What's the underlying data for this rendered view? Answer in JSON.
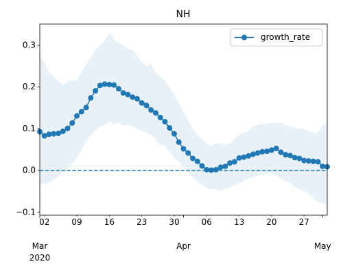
{
  "chart_data": {
    "type": "line",
    "title": "NH",
    "x": [
      "2020-03-01",
      "2020-03-02",
      "2020-03-03",
      "2020-03-04",
      "2020-03-05",
      "2020-03-06",
      "2020-03-07",
      "2020-03-08",
      "2020-03-09",
      "2020-03-10",
      "2020-03-11",
      "2020-03-12",
      "2020-03-13",
      "2020-03-14",
      "2020-03-15",
      "2020-03-16",
      "2020-03-17",
      "2020-03-18",
      "2020-03-19",
      "2020-03-20",
      "2020-03-21",
      "2020-03-22",
      "2020-03-23",
      "2020-03-24",
      "2020-03-25",
      "2020-03-26",
      "2020-03-27",
      "2020-03-28",
      "2020-03-29",
      "2020-03-30",
      "2020-03-31",
      "2020-04-01",
      "2020-04-02",
      "2020-04-03",
      "2020-04-04",
      "2020-04-05",
      "2020-04-06",
      "2020-04-07",
      "2020-04-08",
      "2020-04-09",
      "2020-04-10",
      "2020-04-11",
      "2020-04-12",
      "2020-04-13",
      "2020-04-14",
      "2020-04-15",
      "2020-04-16",
      "2020-04-17",
      "2020-04-18",
      "2020-04-19",
      "2020-04-20",
      "2020-04-21",
      "2020-04-22",
      "2020-04-23",
      "2020-04-24",
      "2020-04-25",
      "2020-04-26",
      "2020-04-27",
      "2020-04-28",
      "2020-04-29",
      "2020-04-30",
      "2020-05-01",
      "2020-05-02"
    ],
    "series": [
      {
        "name": "growth_rate",
        "color": "#1f77b4",
        "values": [
          0.093,
          0.083,
          0.087,
          0.088,
          0.089,
          0.094,
          0.101,
          0.114,
          0.131,
          0.141,
          0.151,
          0.174,
          0.191,
          0.204,
          0.207,
          0.206,
          0.205,
          0.196,
          0.186,
          0.182,
          0.176,
          0.172,
          0.162,
          0.156,
          0.145,
          0.138,
          0.127,
          0.117,
          0.102,
          0.088,
          0.068,
          0.052,
          0.042,
          0.029,
          0.022,
          0.011,
          0.002,
          0.001,
          0.002,
          0.008,
          0.01,
          0.018,
          0.021,
          0.03,
          0.032,
          0.035,
          0.039,
          0.042,
          0.045,
          0.046,
          0.049,
          0.053,
          0.044,
          0.038,
          0.036,
          0.031,
          0.029,
          0.024,
          0.023,
          0.022,
          0.021,
          0.01,
          0.009
        ]
      }
    ],
    "band": {
      "color": "#1f77b4",
      "upper": [
        0.27,
        0.26,
        0.235,
        0.225,
        0.215,
        0.205,
        0.215,
        0.215,
        0.215,
        0.235,
        0.255,
        0.27,
        0.29,
        0.3,
        0.31,
        0.33,
        0.315,
        0.305,
        0.3,
        0.29,
        0.29,
        0.275,
        0.26,
        0.25,
        0.255,
        0.235,
        0.225,
        0.215,
        0.2,
        0.18,
        0.16,
        0.14,
        0.12,
        0.1,
        0.085,
        0.075,
        0.065,
        0.06,
        0.065,
        0.065,
        0.062,
        0.065,
        0.075,
        0.085,
        0.09,
        0.095,
        0.105,
        0.11,
        0.112,
        0.113,
        0.113,
        0.115,
        0.115,
        0.11,
        0.105,
        0.103,
        0.1,
        0.1,
        0.095,
        0.09,
        0.09,
        0.11,
        0.112
      ],
      "lower": [
        -0.03,
        -0.033,
        -0.028,
        -0.022,
        -0.015,
        -0.005,
        0.005,
        0.018,
        0.03,
        0.05,
        0.07,
        0.085,
        0.095,
        0.105,
        0.11,
        0.12,
        0.11,
        0.115,
        0.108,
        0.11,
        0.105,
        0.1,
        0.095,
        0.09,
        0.085,
        0.075,
        0.06,
        0.06,
        0.045,
        0.032,
        0.02,
        0.008,
        -0.005,
        -0.015,
        -0.025,
        -0.035,
        -0.042,
        -0.045,
        -0.045,
        -0.048,
        -0.045,
        -0.04,
        -0.035,
        -0.03,
        -0.025,
        -0.018,
        -0.015,
        -0.012,
        -0.01,
        -0.008,
        -0.008,
        -0.01,
        -0.02,
        -0.025,
        -0.03,
        -0.04,
        -0.045,
        -0.05,
        -0.055,
        -0.065,
        -0.075,
        -0.08,
        -0.082
      ]
    },
    "reference_line": {
      "y": 0,
      "style": "dashed"
    },
    "xlim": [
      "2020-03-01",
      "2020-05-02"
    ],
    "xticks": [
      {
        "value": "2020-03-01",
        "label": "Mar\n2020"
      },
      {
        "value": "2020-04-01",
        "label": "Apr"
      },
      {
        "value": "2020-05-01",
        "label": "May"
      }
    ],
    "xticks_minor": [
      {
        "value": "2020-03-02",
        "label": "02"
      },
      {
        "value": "2020-03-09",
        "label": "09"
      },
      {
        "value": "2020-03-16",
        "label": "16"
      },
      {
        "value": "2020-03-23",
        "label": "23"
      },
      {
        "value": "2020-03-30",
        "label": "30"
      },
      {
        "value": "2020-04-06",
        "label": "06"
      },
      {
        "value": "2020-04-13",
        "label": "13"
      },
      {
        "value": "2020-04-20",
        "label": "20"
      },
      {
        "value": "2020-04-27",
        "label": "27"
      }
    ],
    "ylim": [
      -0.107,
      0.351
    ],
    "yticks": [
      {
        "value": -0.1,
        "label": "−0.1"
      },
      {
        "value": 0,
        "label": "0.0"
      },
      0.1,
      0.2,
      0.3
    ],
    "legend": "upper right"
  }
}
